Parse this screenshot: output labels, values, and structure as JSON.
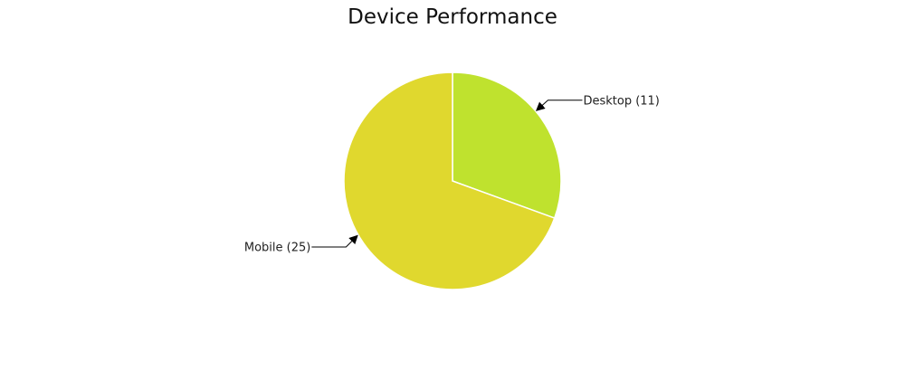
{
  "chart_data": {
    "type": "pie",
    "title": "Device Performance",
    "slices": [
      {
        "name": "Desktop",
        "value": 11,
        "label": "Desktop (11)",
        "color": "#bfe22e"
      },
      {
        "name": "Mobile",
        "value": 25,
        "label": "Mobile (25)",
        "color": "#e0d82e"
      }
    ],
    "start_angle_deg": 0,
    "direction": "clockwise",
    "legend": "none",
    "slice_border_color": "#ffffff"
  }
}
